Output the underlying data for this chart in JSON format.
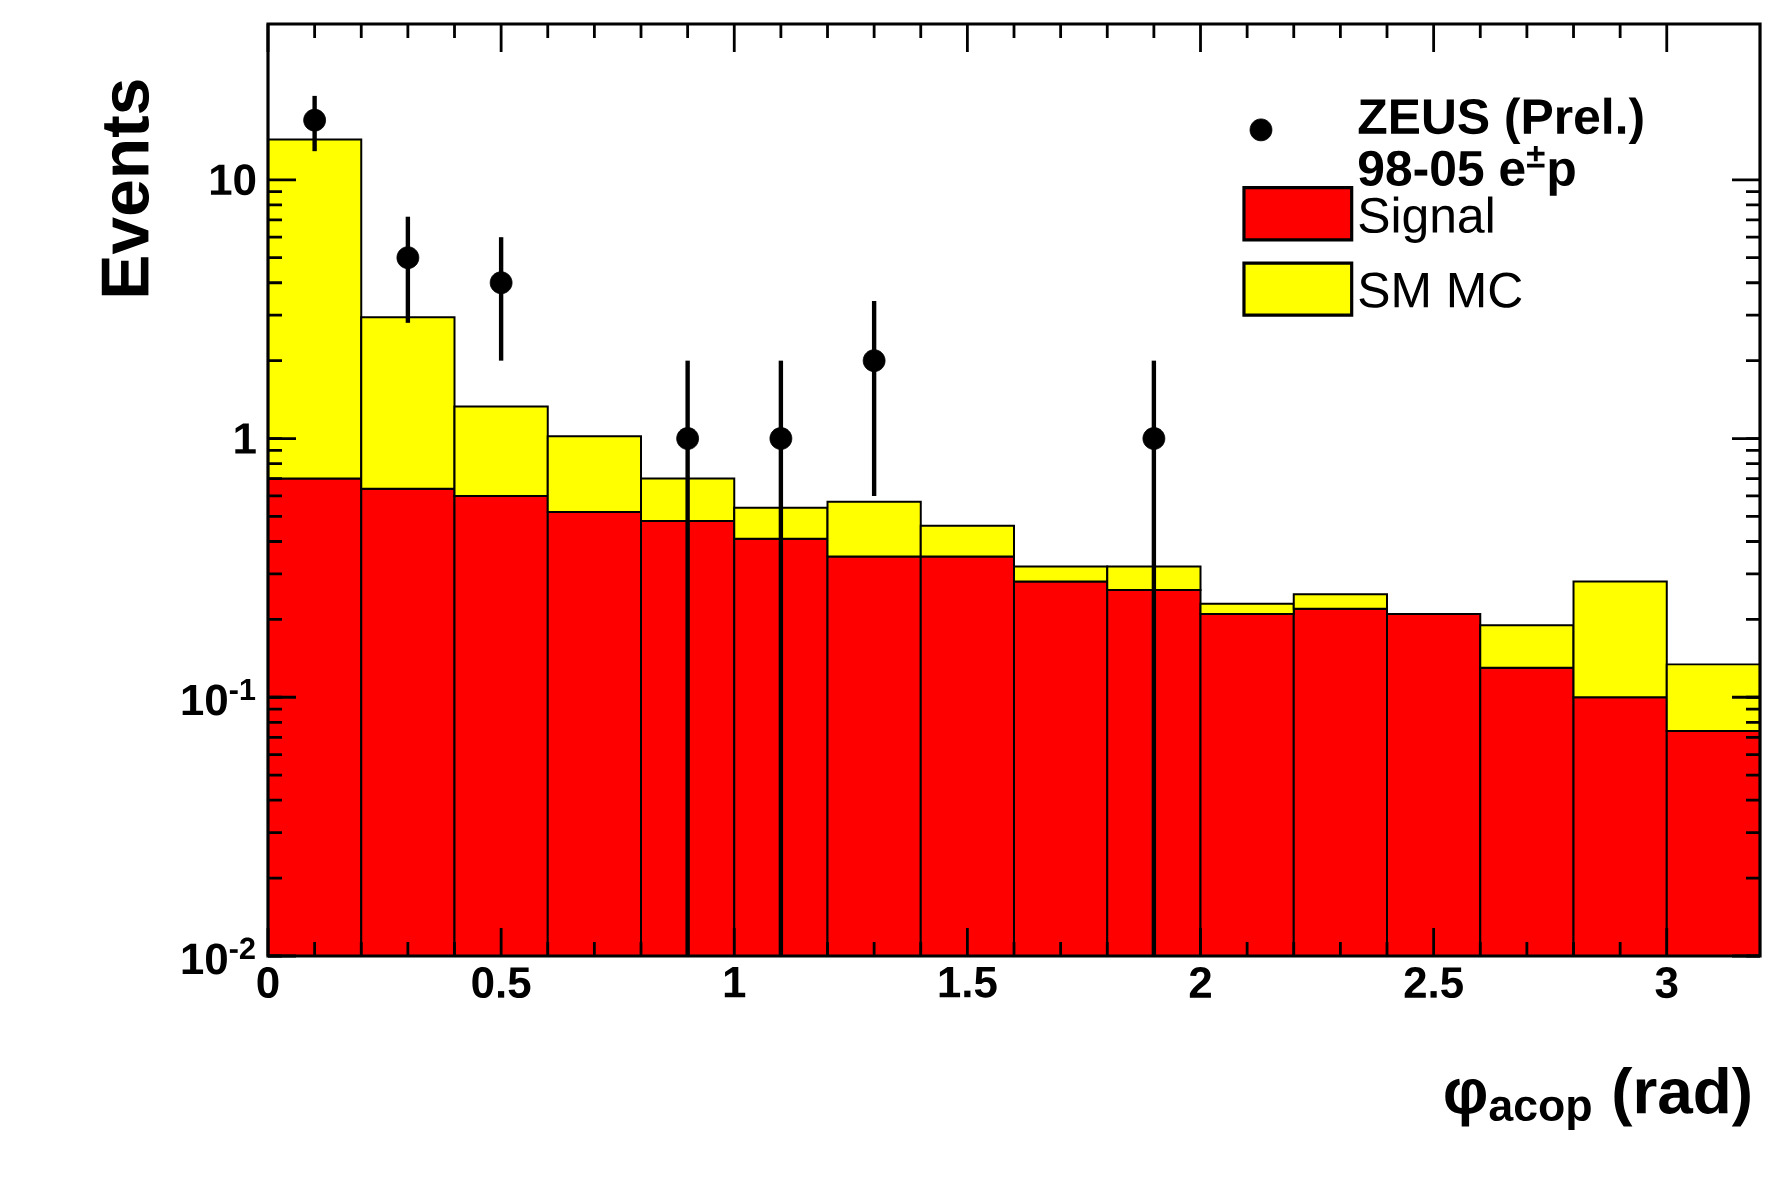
{
  "chart_data": {
    "type": "bar",
    "stacked": true,
    "log": "y",
    "legend": "top right",
    "xlabel": "φ$_{acop}$ (rad)",
    "ylabel": "Events",
    "x": [
      0.1,
      0.3,
      0.5,
      0.7,
      0.9,
      1.1,
      1.3,
      1.5,
      1.7,
      1.9,
      2.1,
      2.3,
      2.5,
      2.7,
      2.9,
      3.1
    ],
    "xlim": [
      0,
      3.2
    ],
    "ylim": [
      0.01,
      40
    ],
    "xticks": [
      0,
      0.5,
      1,
      1.5,
      2,
      2.5,
      3
    ],
    "yticks": [
      {
        "value": 0.01,
        "label": "10$^{-2}$"
      },
      {
        "value": 0.1,
        "label": "10$^{-1}$"
      },
      1,
      10
    ],
    "series": [
      {
        "name": "ZEUS (Prel.) 98-05 e$^{±}$p",
        "type": "scatter",
        "color": "#000000",
        "x": [
          0.1,
          0.3,
          0.5,
          0.9,
          1.1,
          1.3,
          1.9
        ],
        "values": [
          17,
          5,
          4,
          1,
          1,
          2,
          1
        ],
        "errors": [
          [
            12.9,
            21.1
          ],
          [
            2.8,
            7.2
          ],
          [
            2,
            6
          ],
          [
            0.01,
            2
          ],
          [
            0.01,
            2
          ],
          [
            0.6,
            3.4
          ],
          [
            0.01,
            2
          ]
        ]
      },
      {
        "name": "Signal",
        "color": "#ff0000",
        "values": [
          0.7,
          0.64,
          0.6,
          0.52,
          0.48,
          0.41,
          0.35,
          0.35,
          0.28,
          0.26,
          0.21,
          0.22,
          0.21,
          0.13,
          0.1,
          0.074
        ]
      },
      {
        "name": "SM MC",
        "color": "#ffff00",
        "values": [
          13.6,
          2.3,
          0.73,
          0.5,
          0.22,
          0.13,
          0.22,
          0.11,
          0.04,
          0.06,
          0.02,
          0.03,
          null,
          0.06,
          0.18,
          0.06
        ]
      }
    ]
  }
}
